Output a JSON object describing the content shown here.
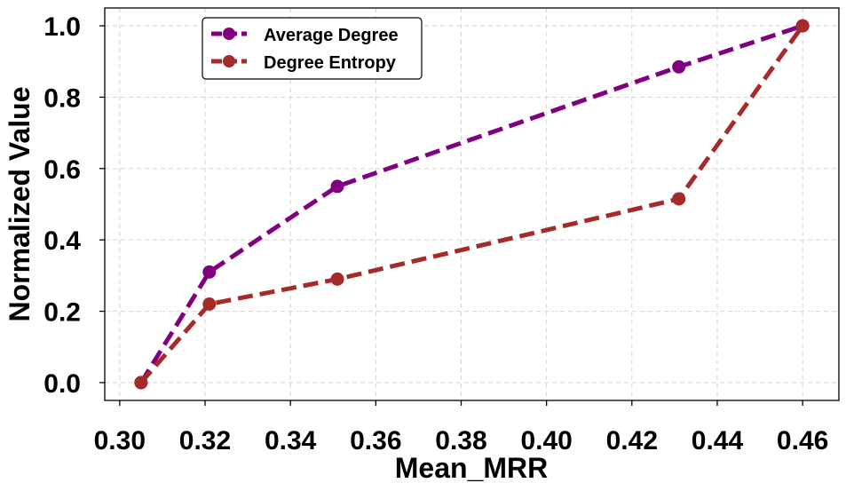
{
  "chart_data": {
    "type": "line",
    "title": "",
    "xlabel": "Mean_MRR",
    "ylabel": "Normalized Value",
    "xlim": [
      0.2965,
      0.4685
    ],
    "ylim": [
      -0.05,
      1.05
    ],
    "x_ticks": [
      0.3,
      0.32,
      0.34,
      0.36,
      0.38,
      0.4,
      0.42,
      0.44,
      0.46
    ],
    "x_tick_labels": [
      "0.30",
      "0.32",
      "0.34",
      "0.36",
      "0.38",
      "0.40",
      "0.42",
      "0.44",
      "0.46"
    ],
    "y_ticks": [
      0.0,
      0.2,
      0.4,
      0.6,
      0.8,
      1.0
    ],
    "y_tick_labels": [
      "0.0",
      "0.2",
      "0.4",
      "0.6",
      "0.8",
      "1.0"
    ],
    "grid": true,
    "legend_position": "top-left",
    "series": [
      {
        "name": "Average Degree",
        "color": "#800080",
        "x": [
          0.305,
          0.321,
          0.351,
          0.431,
          0.46
        ],
        "y": [
          0.0,
          0.31,
          0.55,
          0.885,
          1.0
        ]
      },
      {
        "name": "Degree Entropy",
        "color": "#a52a2a",
        "x": [
          0.305,
          0.321,
          0.351,
          0.431,
          0.46
        ],
        "y": [
          0.0,
          0.22,
          0.29,
          0.515,
          1.0
        ]
      }
    ]
  }
}
